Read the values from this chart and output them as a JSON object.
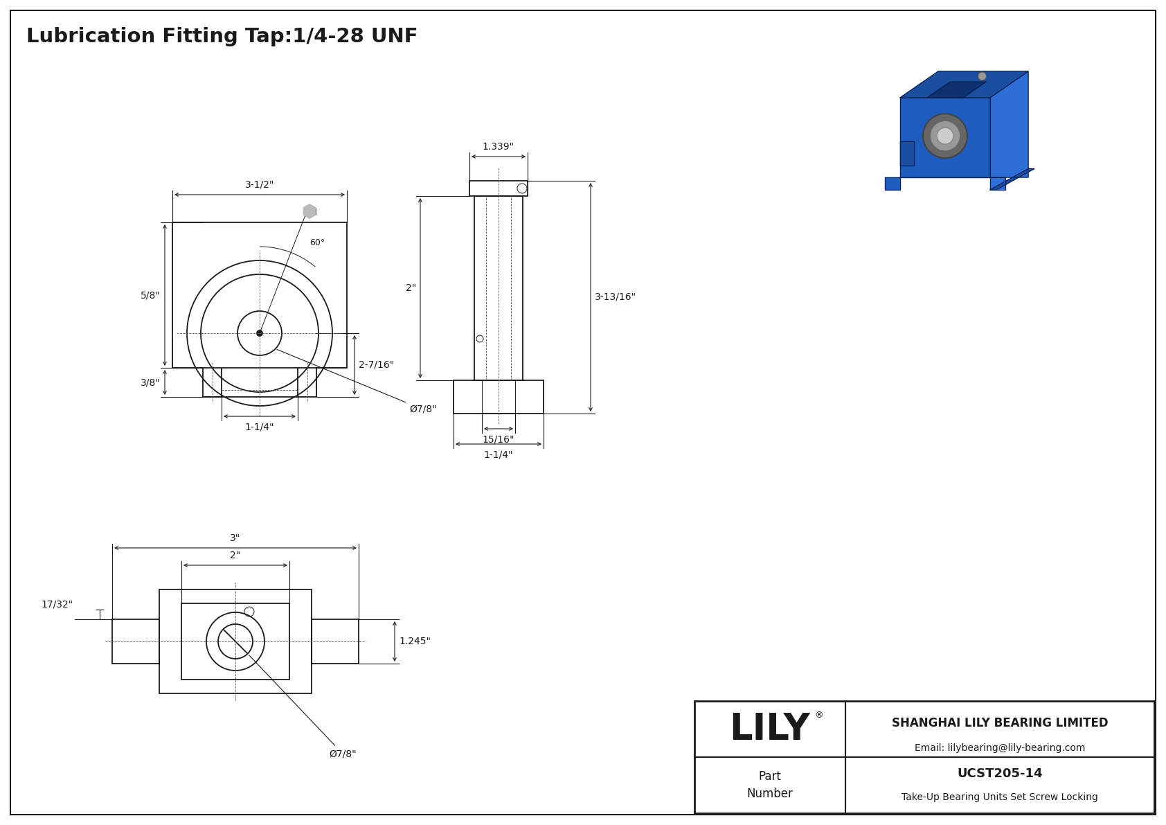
{
  "title": "Lubrication Fitting Tap:1/4-28 UNF",
  "bg_color": "#ffffff",
  "line_color": "#1a1a1a",
  "dims": {
    "front_width": "3-1/2\"",
    "front_height_upper": "5/8\"",
    "front_height_lower": "3/8\"",
    "front_slot_width": "1-1/4\"",
    "front_bore": "Ø7/8\"",
    "front_hub_height": "2-7/16\"",
    "front_angle": "60°",
    "side_top": "1.339\"",
    "side_height": "2\"",
    "side_total": "3-13/16\"",
    "side_base_inner": "15/16\"",
    "side_base_outer": "1-1/4\"",
    "bottom_total": "3\"",
    "bottom_inner": "2\"",
    "bottom_height": "1.245\"",
    "bottom_slot": "17/32\"",
    "bottom_bore": "Ø7/8\""
  },
  "company": "SHANGHAI LILY BEARING LIMITED",
  "email": "Email: lilybearing@lily-bearing.com",
  "part_label": "Part\nNumber",
  "part_number": "UCST205-14",
  "part_desc": "Take-Up Bearing Units Set Screw Locking",
  "lily_logo": "LILY",
  "iso_colors": {
    "blue_front": "#1e5cbf",
    "blue_top": "#1a4fa0",
    "blue_right": "#2d6fd6",
    "blue_dark": "#0d3070",
    "blue_mid": "#1a4fa0",
    "outline": "#0a2050"
  }
}
